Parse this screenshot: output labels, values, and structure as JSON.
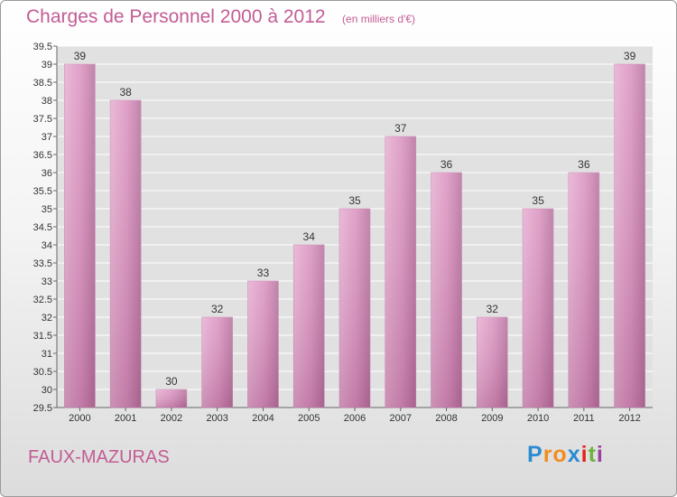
{
  "header": {
    "title": "Charges de Personnel 2000 à 2012",
    "subtitle": "(en milliers d'€)"
  },
  "commune": "FAUX-MAZURAS",
  "logo": {
    "text": "Proxiti",
    "letters": [
      {
        "ch": "P",
        "color": "#2a8bd1"
      },
      {
        "ch": "r",
        "color": "#f28c1f"
      },
      {
        "ch": "o",
        "color": "#f28c1f"
      },
      {
        "ch": "x",
        "color": "#2a8bd1"
      },
      {
        "ch": "i",
        "color": "#e2231a"
      },
      {
        "ch": "t",
        "color": "#6cb33f"
      },
      {
        "ch": "i",
        "color": "#9c3fa0"
      }
    ]
  },
  "colors": {
    "bar": "#d98fbd",
    "bar_light": "#e7aed1",
    "bar_dark": "#b56f9c",
    "grid": "#ffffff",
    "plot_bg": "#e1e1e1",
    "title": "#c25c94"
  },
  "chart_data": {
    "type": "bar",
    "categories": [
      "2000",
      "2001",
      "2002",
      "2003",
      "2004",
      "2005",
      "2006",
      "2007",
      "2008",
      "2009",
      "2010",
      "2011",
      "2012"
    ],
    "values": [
      39,
      38,
      30,
      32,
      33,
      34,
      35,
      37,
      36,
      32,
      35,
      36,
      39
    ],
    "data_labels": [
      "39",
      "38",
      "30",
      "32",
      "33",
      "34",
      "35",
      "37",
      "36",
      "32",
      "35",
      "36",
      "39"
    ],
    "ylim": [
      29.5,
      39.5
    ],
    "yticks": [
      29.5,
      30,
      30.5,
      31,
      31.5,
      32,
      32.5,
      33,
      33.5,
      34,
      34.5,
      35,
      35.5,
      36,
      36.5,
      37,
      37.5,
      38,
      38.5,
      39,
      39.5
    ],
    "ytick_labels": [
      "29.5",
      "30",
      "30.5",
      "31",
      "31.5",
      "32",
      "32.5",
      "33",
      "33.5",
      "34",
      "34.5",
      "35",
      "35.5",
      "36",
      "36.5",
      "37",
      "37.5",
      "38",
      "38.5",
      "39",
      "39.5"
    ],
    "grid": true,
    "legend": "none"
  }
}
